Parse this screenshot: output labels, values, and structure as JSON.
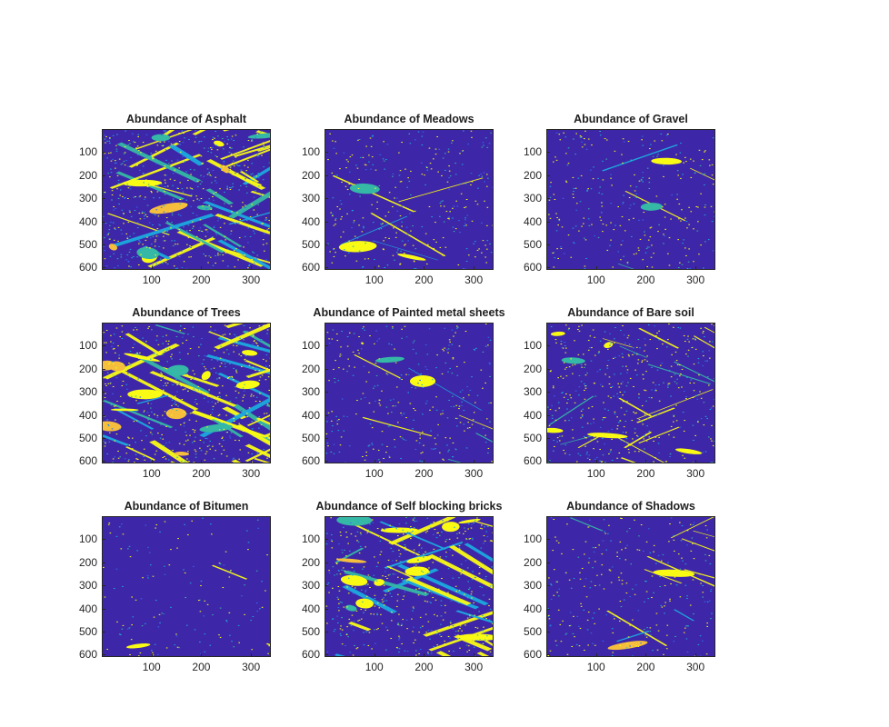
{
  "figure": {
    "background": "#ffffff",
    "colormap": "parula",
    "colors": {
      "low": "#3e26a8",
      "mid_blue": "#2f6ef0",
      "cyan": "#1caadf",
      "teal": "#35b8a5",
      "orange": "#f5be3d",
      "high": "#f9fb15"
    }
  },
  "chart_data": [
    {
      "type": "heatmap",
      "title": "Abundance of Asphalt",
      "xticks": [
        100,
        200,
        300
      ],
      "yticks": [
        100,
        200,
        300,
        400,
        500,
        600
      ],
      "xlim": [
        1,
        340
      ],
      "ylim": [
        1,
        610
      ],
      "y_reversed": true,
      "density": "high",
      "grid": false
    },
    {
      "type": "heatmap",
      "title": "Abundance of Meadows",
      "xticks": [
        100,
        200,
        300
      ],
      "yticks": [
        100,
        200,
        300,
        400,
        500,
        600
      ],
      "xlim": [
        1,
        340
      ],
      "ylim": [
        1,
        610
      ],
      "y_reversed": true,
      "density": "low",
      "grid": false
    },
    {
      "type": "heatmap",
      "title": "Abundance of Gravel",
      "xticks": [
        100,
        200,
        300
      ],
      "yticks": [
        100,
        200,
        300,
        400,
        500,
        600
      ],
      "xlim": [
        1,
        340
      ],
      "ylim": [
        1,
        610
      ],
      "y_reversed": true,
      "density": "low",
      "grid": false
    },
    {
      "type": "heatmap",
      "title": "Abundance of Trees",
      "xticks": [
        100,
        200,
        300
      ],
      "yticks": [
        100,
        200,
        300,
        400,
        500,
        600
      ],
      "xlim": [
        1,
        340
      ],
      "ylim": [
        1,
        610
      ],
      "y_reversed": true,
      "density": "very-high",
      "grid": false
    },
    {
      "type": "heatmap",
      "title": "Abundance of Painted metal sheets",
      "xticks": [
        100,
        200,
        300
      ],
      "yticks": [
        100,
        200,
        300,
        400,
        500,
        600
      ],
      "xlim": [
        1,
        340
      ],
      "ylim": [
        1,
        610
      ],
      "y_reversed": true,
      "density": "low",
      "grid": false
    },
    {
      "type": "heatmap",
      "title": "Abundance of Bare soil",
      "xticks": [
        100,
        200,
        300
      ],
      "yticks": [
        100,
        200,
        300,
        400,
        500,
        600
      ],
      "xlim": [
        1,
        340
      ],
      "ylim": [
        1,
        610
      ],
      "y_reversed": true,
      "density": "medium",
      "grid": false
    },
    {
      "type": "heatmap",
      "title": "Abundance of Bitumen",
      "xticks": [
        100,
        200,
        300
      ],
      "yticks": [
        100,
        200,
        300,
        400,
        500,
        600
      ],
      "xlim": [
        1,
        340
      ],
      "ylim": [
        1,
        610
      ],
      "y_reversed": true,
      "density": "very-low",
      "grid": false
    },
    {
      "type": "heatmap",
      "title": "Abundance of Self blocking bricks",
      "xticks": [
        100,
        200,
        300
      ],
      "yticks": [
        100,
        200,
        300,
        400,
        500,
        600
      ],
      "xlim": [
        1,
        340
      ],
      "ylim": [
        1,
        610
      ],
      "y_reversed": true,
      "density": "high",
      "grid": false
    },
    {
      "type": "heatmap",
      "title": "Abundance of Shadows",
      "xticks": [
        100,
        200,
        300
      ],
      "yticks": [
        100,
        200,
        300,
        400,
        500,
        600
      ],
      "xlim": [
        1,
        340
      ],
      "ylim": [
        1,
        610
      ],
      "y_reversed": true,
      "density": "low",
      "grid": false
    }
  ],
  "panels": [
    {
      "title": "Abundance of Asphalt",
      "ylabels": [
        "100",
        "200",
        "300",
        "400",
        "500",
        "600"
      ],
      "xlabels": [
        "100",
        "200",
        "300"
      ]
    },
    {
      "title": "Abundance of Meadows",
      "ylabels": [
        "100",
        "200",
        "300",
        "400",
        "500",
        "600"
      ],
      "xlabels": [
        "100",
        "200",
        "300"
      ]
    },
    {
      "title": "Abundance of Gravel",
      "ylabels": [
        "100",
        "200",
        "300",
        "400",
        "500",
        "600"
      ],
      "xlabels": [
        "100",
        "200",
        "300"
      ]
    },
    {
      "title": "Abundance of Trees",
      "ylabels": [
        "100",
        "200",
        "300",
        "400",
        "500",
        "600"
      ],
      "xlabels": [
        "100",
        "200",
        "300"
      ]
    },
    {
      "title": "Abundance of Painted metal sheets",
      "ylabels": [
        "100",
        "200",
        "300",
        "400",
        "500",
        "600"
      ],
      "xlabels": [
        "100",
        "200",
        "300"
      ]
    },
    {
      "title": "Abundance of Bare soil",
      "ylabels": [
        "100",
        "200",
        "300",
        "400",
        "500",
        "600"
      ],
      "xlabels": [
        "100",
        "200",
        "300"
      ]
    },
    {
      "title": "Abundance of Bitumen",
      "ylabels": [
        "100",
        "200",
        "300",
        "400",
        "500",
        "600"
      ],
      "xlabels": [
        "100",
        "200",
        "300"
      ]
    },
    {
      "title": "Abundance of Self blocking bricks",
      "ylabels": [
        "100",
        "200",
        "300",
        "400",
        "500",
        "600"
      ],
      "xlabels": [
        "100",
        "200",
        "300"
      ]
    },
    {
      "title": "Abundance of Shadows",
      "ylabels": [
        "100",
        "200",
        "300",
        "400",
        "500",
        "600"
      ],
      "xlabels": [
        "100",
        "200",
        "300"
      ]
    }
  ]
}
